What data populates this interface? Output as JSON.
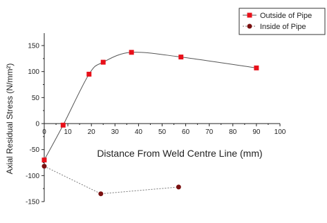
{
  "chart_data": {
    "type": "line",
    "title": "",
    "xlabel": "Distance From Weld Centre Line (mm)",
    "ylabel": "Axial Residual Stress (N/mm²)",
    "xlim": [
      0,
      100
    ],
    "ylim": [
      -150,
      150
    ],
    "x_ticks": [
      0,
      10,
      20,
      30,
      40,
      50,
      60,
      70,
      80,
      90,
      100
    ],
    "y_ticks": [
      -150,
      -100,
      -50,
      0,
      50,
      100,
      150
    ],
    "grid": false,
    "legend_position": "top-right",
    "series": [
      {
        "name": "Outside of Pipe",
        "color": "#e8101a",
        "marker": "square",
        "line_style": "solid-smooth",
        "line_color": "#555555",
        "x": [
          0,
          8,
          19,
          25,
          37,
          58,
          90
        ],
        "y": [
          -70,
          -3,
          95,
          118,
          137,
          128,
          107
        ]
      },
      {
        "name": "Inside of Pipe",
        "color": "#7a1010",
        "marker": "circle",
        "line_style": "dotted",
        "line_color": "#777777",
        "x": [
          0,
          24,
          57
        ],
        "y": [
          -82,
          -135,
          -122
        ]
      }
    ]
  }
}
